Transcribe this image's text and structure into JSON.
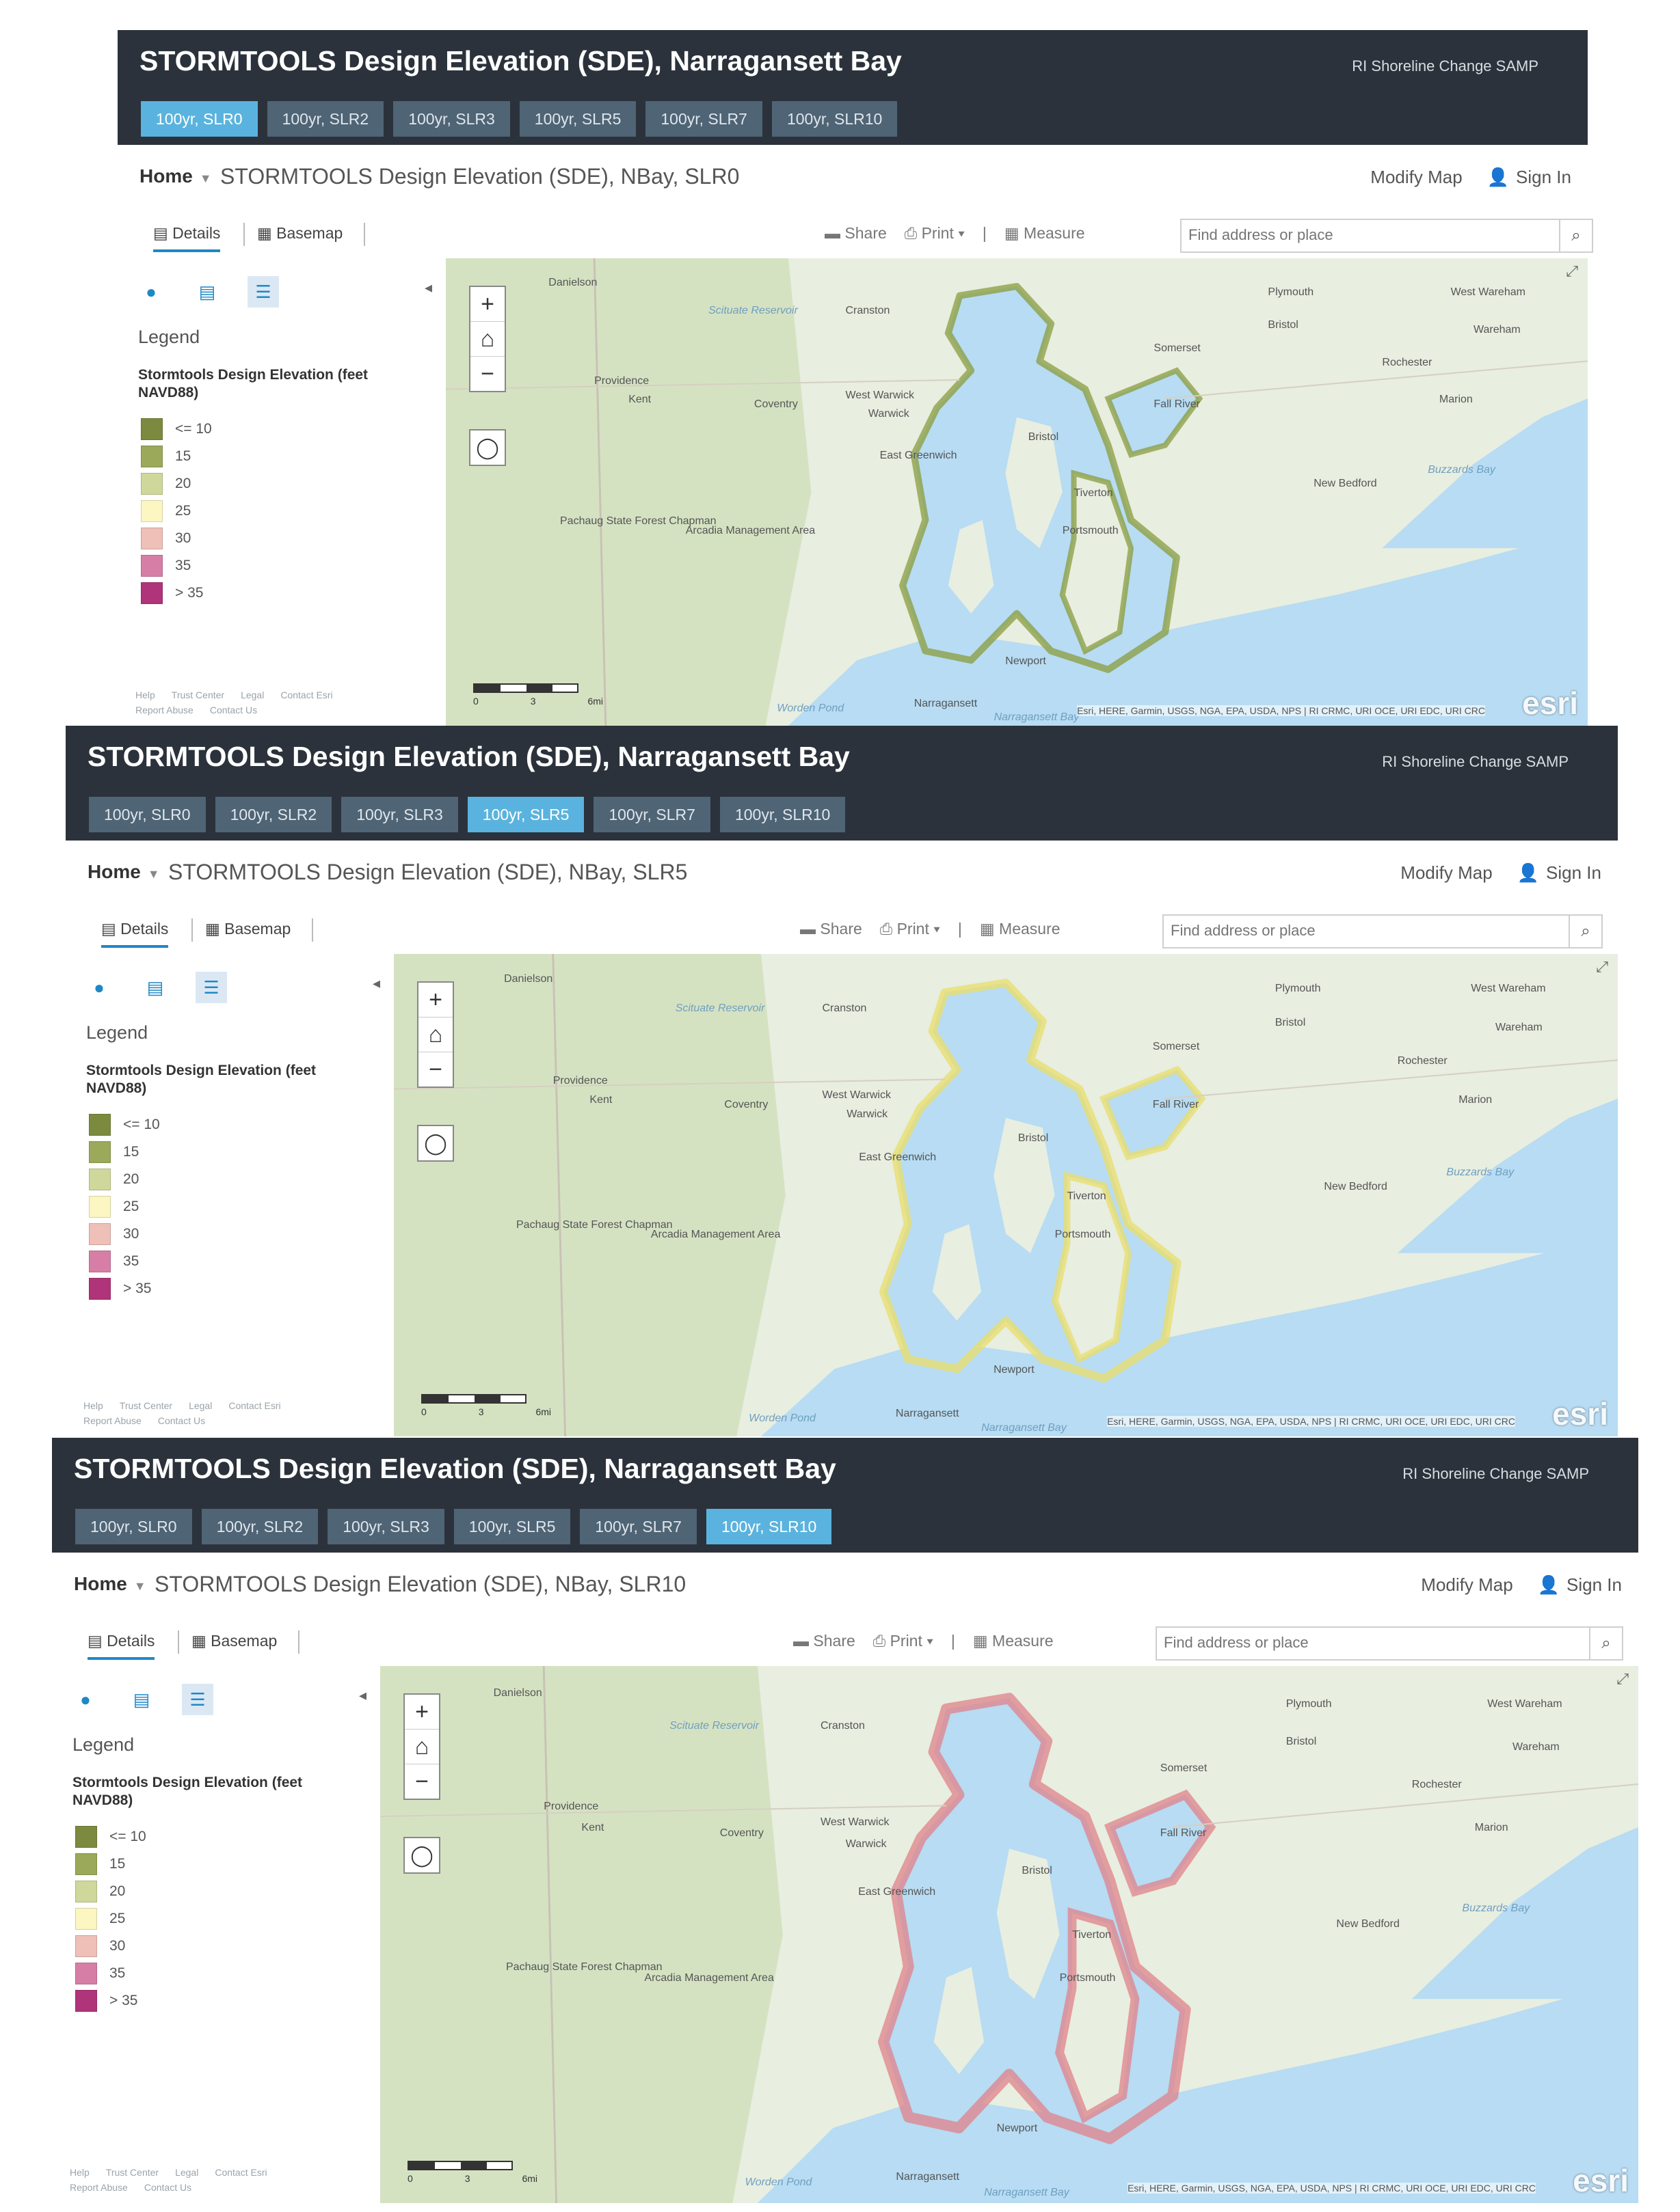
{
  "apps": [
    {
      "title": "STORMTOOLS Design Elevation (SDE), Narragansett Bay",
      "samp": "RI Shoreline Change SAMP",
      "tabs": [
        "100yr, SLR0",
        "100yr, SLR2",
        "100yr, SLR3",
        "100yr, SLR5",
        "100yr, SLR7",
        "100yr, SLR10"
      ],
      "active_tab": 0,
      "home": "Home",
      "map_title": "STORMTOOLS Design Elevation (SDE), NBay, SLR0",
      "modify": "Modify Map",
      "signin": "Sign In",
      "details": "Details",
      "basemap": "Basemap",
      "share": "Share",
      "print": "Print",
      "measure": "Measure",
      "search_placeholder": "Find address or place",
      "legend_heading": "Legend",
      "legend_title": "Stormtools Design Elevation (feet NAVD88)",
      "legend": [
        {
          "label": "<= 10",
          "color": "#7b8a3e"
        },
        {
          "label": "15",
          "color": "#9aa95a"
        },
        {
          "label": "20",
          "color": "#cfd79a"
        },
        {
          "label": "25",
          "color": "#fbf6c2"
        },
        {
          "label": "30",
          "color": "#eec0b8"
        },
        {
          "label": "35",
          "color": "#d67ea6"
        },
        {
          "label": "> 35",
          "color": "#b0347a"
        }
      ],
      "footer": [
        "Help",
        "Trust Center",
        "Legal",
        "Contact Esri",
        "Report Abuse",
        "Contact Us"
      ],
      "scale_labels": [
        "0",
        "3",
        "6mi"
      ],
      "attribution": "Esri, HERE, Garmin, USGS, NGA, EPA, USDA, NPS | RI CRMC, URI OCE, URI EDC, URI CRC",
      "esri": "esri",
      "places": [
        "Danielson",
        "Cranston",
        "Plymouth",
        "Bristol",
        "West Wareham",
        "Wareham",
        "Scituate Reservoir",
        "Providence",
        "Kent",
        "Somerset",
        "Rochester",
        "Coventry",
        "West Warwick",
        "Warwick",
        "Fall River",
        "Marion",
        "East Greenwich",
        "Bristol",
        "Buzzards Bay",
        "New Bedford",
        "Tiverton",
        "Portsmouth",
        "Pachaug State Forest Chapman",
        "Arcadia Management Area",
        "Newport",
        "Narragansett",
        "Narragansett Bay",
        "Worden Pond"
      ],
      "overlay_color": "#8a9c3c"
    },
    {
      "title": "STORMTOOLS Design Elevation (SDE), Narragansett Bay",
      "samp": "RI Shoreline Change SAMP",
      "tabs": [
        "100yr, SLR0",
        "100yr, SLR2",
        "100yr, SLR3",
        "100yr, SLR5",
        "100yr, SLR7",
        "100yr, SLR10"
      ],
      "active_tab": 3,
      "home": "Home",
      "map_title": "STORMTOOLS Design Elevation (SDE), NBay, SLR5",
      "modify": "Modify Map",
      "signin": "Sign In",
      "details": "Details",
      "basemap": "Basemap",
      "share": "Share",
      "print": "Print",
      "measure": "Measure",
      "search_placeholder": "Find address or place",
      "legend_heading": "Legend",
      "legend_title": "Stormtools Design Elevation (feet NAVD88)",
      "legend": [
        {
          "label": "<= 10",
          "color": "#7b8a3e"
        },
        {
          "label": "15",
          "color": "#9aa95a"
        },
        {
          "label": "20",
          "color": "#cfd79a"
        },
        {
          "label": "25",
          "color": "#fbf6c2"
        },
        {
          "label": "30",
          "color": "#eec0b8"
        },
        {
          "label": "35",
          "color": "#d67ea6"
        },
        {
          "label": "> 35",
          "color": "#b0347a"
        }
      ],
      "footer": [
        "Help",
        "Trust Center",
        "Legal",
        "Contact Esri",
        "Report Abuse",
        "Contact Us"
      ],
      "scale_labels": [
        "0",
        "3",
        "6mi"
      ],
      "attribution": "Esri, HERE, Garmin, USGS, NGA, EPA, USDA, NPS | RI CRMC, URI OCE, URI EDC, URI CRC",
      "esri": "esri",
      "places": [
        "Danielson",
        "Cranston",
        "Plymouth",
        "Bristol",
        "West Wareham",
        "Wareham",
        "Scituate Reservoir",
        "Providence",
        "Kent",
        "Somerset",
        "Rochester",
        "Coventry",
        "West Warwick",
        "Warwick",
        "Fall River",
        "Marion",
        "East Greenwich",
        "Bristol",
        "Buzzards Bay",
        "New Bedford",
        "Tiverton",
        "Portsmouth",
        "Pachaug State Forest Chapman",
        "Arcadia Management Area",
        "Newport",
        "Narragansett",
        "Narragansett Bay",
        "Worden Pond"
      ],
      "overlay_color": "#e9de6a"
    },
    {
      "title": "STORMTOOLS Design Elevation (SDE), Narragansett Bay",
      "samp": "RI Shoreline Change SAMP",
      "tabs": [
        "100yr, SLR0",
        "100yr, SLR2",
        "100yr, SLR3",
        "100yr, SLR5",
        "100yr, SLR7",
        "100yr, SLR10"
      ],
      "active_tab": 5,
      "home": "Home",
      "map_title": "STORMTOOLS Design Elevation (SDE), NBay, SLR10",
      "modify": "Modify Map",
      "signin": "Sign In",
      "details": "Details",
      "basemap": "Basemap",
      "share": "Share",
      "print": "Print",
      "measure": "Measure",
      "search_placeholder": "Find address or place",
      "legend_heading": "Legend",
      "legend_title": "Stormtools Design Elevation (feet NAVD88)",
      "legend": [
        {
          "label": "<= 10",
          "color": "#7b8a3e"
        },
        {
          "label": "15",
          "color": "#9aa95a"
        },
        {
          "label": "20",
          "color": "#cfd79a"
        },
        {
          "label": "25",
          "color": "#fbf6c2"
        },
        {
          "label": "30",
          "color": "#eec0b8"
        },
        {
          "label": "35",
          "color": "#d67ea6"
        },
        {
          "label": "> 35",
          "color": "#b0347a"
        }
      ],
      "footer": [
        "Help",
        "Trust Center",
        "Legal",
        "Contact Esri",
        "Report Abuse",
        "Contact Us"
      ],
      "scale_labels": [
        "0",
        "3",
        "6mi"
      ],
      "attribution": "Esri, HERE, Garmin, USGS, NGA, EPA, USDA, NPS | RI CRMC, URI OCE, URI EDC, URI CRC",
      "esri": "esri",
      "places": [
        "Danielson",
        "Cranston",
        "Plymouth",
        "Bristol",
        "West Wareham",
        "Wareham",
        "Scituate Reservoir",
        "Providence",
        "Kent",
        "Somerset",
        "Rochester",
        "Coventry",
        "West Warwick",
        "Warwick",
        "Fall River",
        "Marion",
        "East Greenwich",
        "Bristol",
        "Buzzards Bay",
        "New Bedford",
        "Tiverton",
        "Portsmouth",
        "Pachaug State Forest Chapman",
        "Arcadia Management Area",
        "Newport",
        "Narragansett",
        "Narragansett Bay",
        "Worden Pond"
      ],
      "overlay_color": "#e0828a"
    }
  ]
}
